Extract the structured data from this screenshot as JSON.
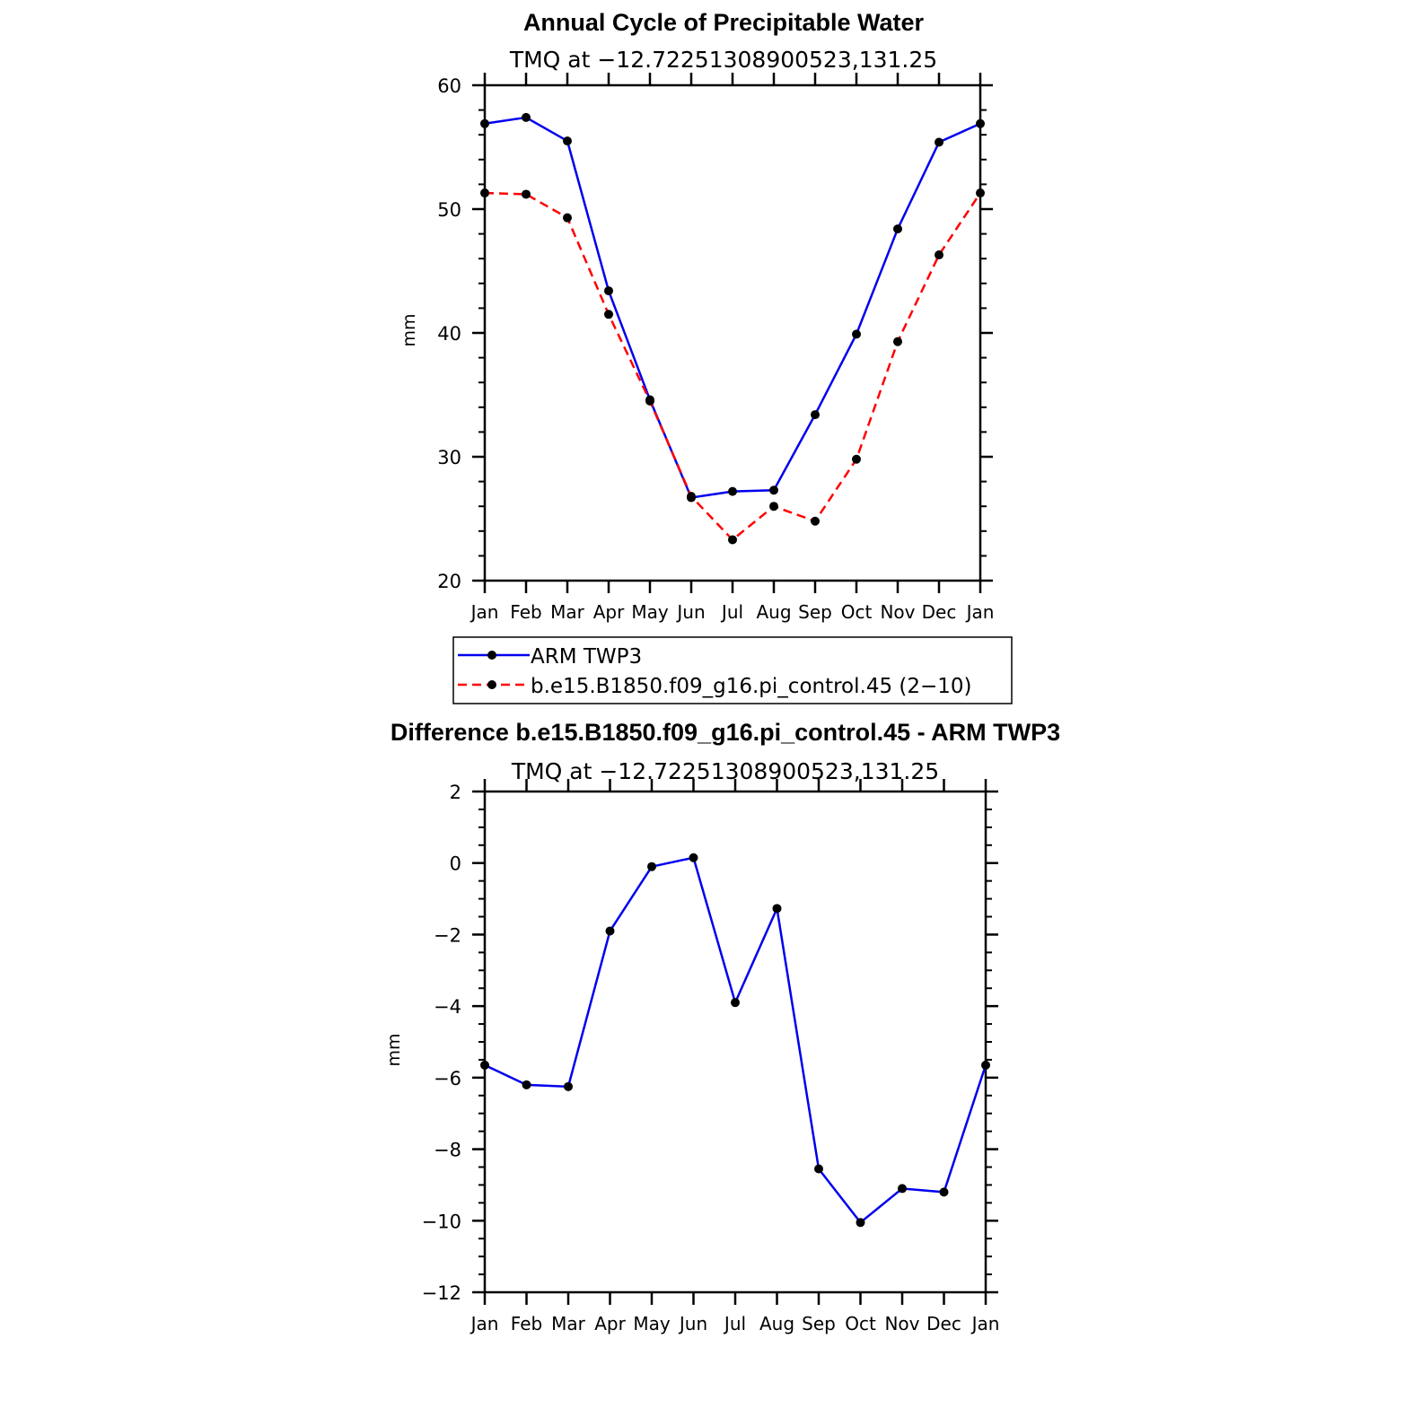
{
  "colors": {
    "series_a": "#0000ee",
    "series_b": "#ff0000",
    "marker": "#000000"
  },
  "chart_data": [
    {
      "type": "line",
      "title": "Annual Cycle of Precipitable Water",
      "subtitle": "TMQ at −12.72251308900523,131.25",
      "xlabel": "",
      "ylabel": "mm",
      "categories": [
        "Jan",
        "Feb",
        "Mar",
        "Apr",
        "May",
        "Jun",
        "Jul",
        "Aug",
        "Sep",
        "Oct",
        "Nov",
        "Dec",
        "Jan"
      ],
      "ylim": [
        20,
        60
      ],
      "yticks": [
        20,
        30,
        40,
        50,
        60
      ],
      "series": [
        {
          "name": "ARM TWP3",
          "style": "solid",
          "values": [
            56.9,
            57.4,
            55.5,
            43.4,
            34.6,
            26.7,
            27.2,
            27.3,
            33.4,
            39.9,
            48.4,
            55.4,
            56.9
          ]
        },
        {
          "name": "b.e15.B1850.f09_g16.pi_control.45 (2−10)",
          "style": "dashed",
          "values": [
            51.3,
            51.2,
            49.3,
            41.5,
            34.5,
            26.8,
            23.3,
            26.0,
            24.8,
            29.8,
            39.3,
            46.3,
            51.3
          ]
        }
      ],
      "legend": [
        "ARM TWP3",
        "b.e15.B1850.f09_g16.pi_control.45 (2−10)"
      ]
    },
    {
      "type": "line",
      "title": "Difference b.e15.B1850.f09_g16.pi_control.45 - ARM TWP3",
      "subtitle": "TMQ at −12.72251308900523,131.25",
      "xlabel": "",
      "ylabel": "mm",
      "categories": [
        "Jan",
        "Feb",
        "Mar",
        "Apr",
        "May",
        "Jun",
        "Jul",
        "Aug",
        "Sep",
        "Oct",
        "Nov",
        "Dec",
        "Jan"
      ],
      "ylim": [
        -12,
        2
      ],
      "yticks": [
        -12,
        -10,
        -8,
        -6,
        -4,
        -2,
        0,
        2
      ],
      "ytick_labels": [
        "−12",
        "−10",
        "−8",
        "−6",
        "−4",
        "−2",
        "0",
        "2"
      ],
      "series": [
        {
          "name": "Difference",
          "style": "solid",
          "values": [
            -5.65,
            -6.2,
            -6.25,
            -1.9,
            -0.1,
            0.15,
            -3.9,
            -1.27,
            -8.55,
            -10.05,
            -9.1,
            -9.2,
            -5.65
          ]
        }
      ]
    }
  ]
}
